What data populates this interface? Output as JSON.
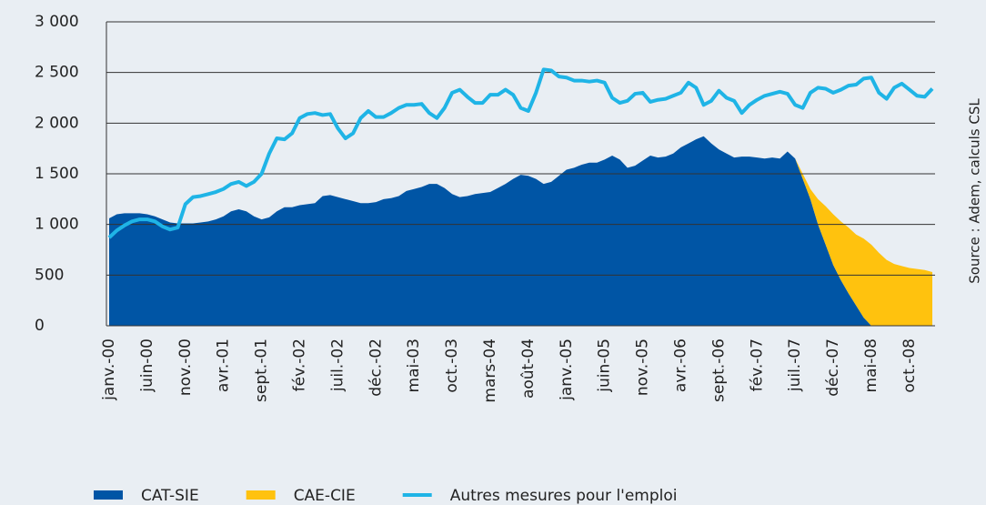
{
  "chart_data": {
    "type": "stacked-area-line",
    "source": "Source : Adem, calculs CSL",
    "categories": [
      "janv.-00",
      null,
      null,
      null,
      null,
      "juin-00",
      null,
      null,
      null,
      null,
      "nov.-00",
      null,
      null,
      null,
      null,
      "avr.-01",
      null,
      null,
      null,
      null,
      "sept.-01",
      null,
      null,
      null,
      null,
      "fév.-02",
      null,
      null,
      null,
      null,
      "juil.-02",
      null,
      null,
      null,
      null,
      "déc.-02",
      null,
      null,
      null,
      null,
      "mai-03",
      null,
      null,
      null,
      null,
      "oct.-03",
      null,
      null,
      null,
      null,
      "mars-04",
      null,
      null,
      null,
      null,
      "août-04",
      null,
      null,
      null,
      null,
      "janv.-05",
      null,
      null,
      null,
      null,
      "juin-05",
      null,
      null,
      null,
      null,
      "nov.-05",
      null,
      null,
      null,
      null,
      "avr.-06",
      null,
      null,
      null,
      null,
      "sept.-06",
      null,
      null,
      null,
      null,
      "fév.-07",
      null,
      null,
      null,
      null,
      "juil.-07",
      null,
      null,
      null,
      null,
      "déc.-07",
      null,
      null,
      null,
      null,
      "mai-08",
      null,
      null,
      null,
      null,
      "oct.-08",
      null,
      null,
      null
    ],
    "series": [
      {
        "name": "CAT-SIE",
        "kind": "area",
        "color": "#0055a5",
        "values": [
          1060,
          1100,
          1110,
          1110,
          1110,
          1100,
          1080,
          1050,
          1020,
          1010,
          1010,
          1010,
          1020,
          1030,
          1050,
          1080,
          1130,
          1150,
          1130,
          1080,
          1050,
          1070,
          1130,
          1170,
          1170,
          1190,
          1200,
          1210,
          1280,
          1290,
          1270,
          1250,
          1230,
          1210,
          1210,
          1220,
          1250,
          1260,
          1280,
          1330,
          1350,
          1370,
          1400,
          1400,
          1360,
          1300,
          1270,
          1280,
          1300,
          1310,
          1320,
          1360,
          1400,
          1450,
          1490,
          1480,
          1450,
          1400,
          1420,
          1480,
          1540,
          1560,
          1590,
          1610,
          1610,
          1640,
          1680,
          1640,
          1560,
          1580,
          1630,
          1680,
          1660,
          1670,
          1700,
          1760,
          1800,
          1840,
          1870,
          1800,
          1740,
          1700,
          1660,
          1670,
          1670,
          1660,
          1650,
          1660,
          1650,
          1720,
          1650,
          1450,
          1250,
          1000,
          800,
          600,
          450,
          320,
          200,
          80,
          0,
          0,
          0,
          0,
          0,
          0,
          0,
          0,
          0
        ]
      },
      {
        "name": "CAE-CIE",
        "kind": "area",
        "color": "#ffc20e",
        "values": [
          null,
          null,
          null,
          null,
          null,
          null,
          null,
          null,
          null,
          null,
          null,
          null,
          null,
          null,
          null,
          null,
          null,
          null,
          null,
          null,
          null,
          null,
          null,
          null,
          null,
          null,
          null,
          null,
          null,
          null,
          null,
          null,
          null,
          null,
          null,
          null,
          null,
          null,
          null,
          null,
          null,
          null,
          null,
          null,
          null,
          null,
          null,
          null,
          null,
          null,
          null,
          null,
          null,
          null,
          null,
          null,
          null,
          null,
          null,
          null,
          null,
          null,
          null,
          null,
          null,
          null,
          null,
          null,
          null,
          null,
          null,
          null,
          null,
          null,
          null,
          null,
          null,
          null,
          null,
          null,
          null,
          null,
          null,
          null,
          null,
          null,
          null,
          null,
          null,
          null,
          0,
          50,
          100,
          250,
          380,
          500,
          580,
          650,
          700,
          780,
          800,
          720,
          650,
          610,
          590,
          570,
          560,
          550,
          530
        ]
      },
      {
        "name": "Autres mesures pour l'emploi",
        "kind": "line",
        "color": "#1fb4e6",
        "values": [
          870,
          940,
          990,
          1030,
          1050,
          1050,
          1030,
          980,
          950,
          970,
          1200,
          1270,
          1280,
          1300,
          1320,
          1350,
          1400,
          1420,
          1380,
          1420,
          1500,
          1700,
          1850,
          1840,
          1900,
          2050,
          2090,
          2100,
          2080,
          2090,
          1950,
          1850,
          1900,
          2050,
          2120,
          2060,
          2060,
          2100,
          2150,
          2180,
          2180,
          2190,
          2100,
          2050,
          2150,
          2300,
          2330,
          2260,
          2200,
          2200,
          2280,
          2280,
          2330,
          2280,
          2150,
          2120,
          2300,
          2530,
          2520,
          2460,
          2450,
          2420,
          2420,
          2410,
          2420,
          2400,
          2250,
          2200,
          2220,
          2290,
          2300,
          2210,
          2230,
          2240,
          2270,
          2300,
          2400,
          2350,
          2180,
          2220,
          2320,
          2250,
          2220,
          2100,
          2180,
          2230,
          2270,
          2290,
          2310,
          2290,
          2180,
          2150,
          2300,
          2350,
          2340,
          2300,
          2330,
          2370,
          2380,
          2440,
          2450,
          2300,
          2240,
          2350,
          2390,
          2330,
          2270,
          2260,
          2340
        ]
      }
    ],
    "ylim": [
      0,
      3000
    ],
    "yticks": [
      0,
      500,
      {
        "value": 1000,
        "label": "1 000"
      },
      {
        "value": 1500,
        "label": "1 500"
      },
      {
        "value": 2000,
        "label": "2 000"
      },
      {
        "value": 2500,
        "label": "2 500"
      },
      {
        "value": 3000,
        "label": "3 000"
      }
    ],
    "grid": true
  }
}
